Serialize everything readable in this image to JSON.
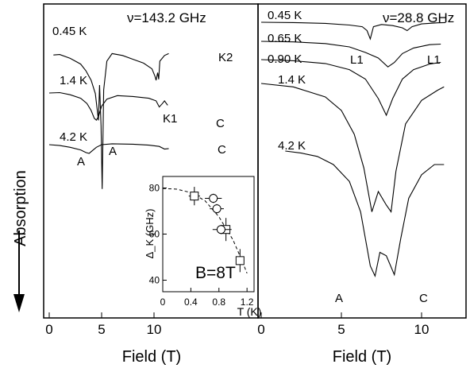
{
  "chart_data": {
    "ylabel": "Absorption",
    "left_panel": {
      "type": "line",
      "frequency_label": "ν=143.2 GHz",
      "xlabel": "Field (T)",
      "xlim": [
        0,
        11.5
      ],
      "ticks": [
        "0",
        "5",
        "10"
      ],
      "series": [
        {
          "name": "0.45 K",
          "points": [
            [
              0.4,
              -0.35
            ],
            [
              1.0,
              -0.3
            ],
            [
              2.0,
              -0.7
            ],
            [
              3.0,
              -1.3
            ],
            [
              3.5,
              -2.0
            ],
            [
              4.0,
              -3.0
            ],
            [
              4.4,
              -4.4
            ],
            [
              4.7,
              -7.2
            ],
            [
              4.8,
              -3.5
            ],
            [
              4.95,
              -7.8
            ],
            [
              5.05,
              -14.4
            ],
            [
              5.2,
              -4.0
            ],
            [
              5.5,
              -1.0
            ],
            [
              6.0,
              -0.2
            ],
            [
              7.0,
              -0.4
            ],
            [
              8.0,
              -0.8
            ],
            [
              9.0,
              -1.2
            ],
            [
              9.8,
              -1.8
            ],
            [
              10.1,
              -2.6
            ],
            [
              10.2,
              -3.0
            ],
            [
              10.35,
              -2.2
            ],
            [
              10.45,
              -2.9
            ],
            [
              10.55,
              -1.0
            ],
            [
              11.0,
              -0.4
            ],
            [
              11.4,
              -0.2
            ]
          ]
        },
        {
          "name": "1.4 K",
          "points": [
            [
              0.0,
              0.0
            ],
            [
              1.0,
              0.05
            ],
            [
              2.0,
              -0.2
            ],
            [
              3.0,
              -0.6
            ],
            [
              3.6,
              -1.2
            ],
            [
              4.0,
              -2.0
            ],
            [
              4.3,
              -2.9
            ],
            [
              4.5,
              -3.1
            ],
            [
              4.7,
              -2.7
            ],
            [
              5.0,
              -1.5
            ],
            [
              5.5,
              -0.7
            ],
            [
              6.5,
              -0.3
            ],
            [
              8.0,
              -0.4
            ],
            [
              9.5,
              -0.6
            ],
            [
              10.2,
              -0.9
            ],
            [
              10.5,
              -1.6
            ],
            [
              10.8,
              -1.2
            ],
            [
              11.0,
              -0.9
            ],
            [
              11.3,
              -1.4
            ]
          ]
        },
        {
          "name": "4.2 K",
          "points": [
            [
              0.0,
              0.0
            ],
            [
              1.0,
              -0.1
            ],
            [
              2.0,
              -0.3
            ],
            [
              3.0,
              -0.6
            ],
            [
              3.5,
              -0.9
            ],
            [
              3.8,
              -1.0
            ],
            [
              4.0,
              -0.8
            ],
            [
              4.5,
              -0.3
            ],
            [
              5.0,
              0.0
            ],
            [
              6.0,
              0.1
            ],
            [
              8.0,
              0.05
            ],
            [
              9.5,
              -0.05
            ],
            [
              10.5,
              -0.2
            ],
            [
              11.0,
              -0.5
            ],
            [
              11.4,
              -0.45
            ]
          ]
        }
      ],
      "annotations": [
        {
          "text": "K1",
          "x": 5.7,
          "y": 3.5
        },
        {
          "text": "K2",
          "x": 9.7,
          "y": 3.5
        },
        {
          "text": "C",
          "x": 10.4,
          "y": 2.4
        },
        {
          "text": "A",
          "x": 3.85,
          "y": 1.72
        },
        {
          "text": "A",
          "x": 3.1,
          "y": 1.0
        },
        {
          "text": "C",
          "x": 10.4,
          "y": 1.3
        }
      ]
    },
    "right_panel": {
      "type": "line",
      "frequency_label": "ν=28.8 GHz",
      "xlabel": "Field (T)",
      "xlim": [
        0,
        11.5
      ],
      "ticks": [
        "0",
        "5",
        "10"
      ],
      "series": [
        {
          "name": "0.45 K",
          "points": [
            [
              0.0,
              0.0
            ],
            [
              2.0,
              -0.05
            ],
            [
              4.0,
              -0.2
            ],
            [
              5.5,
              -0.5
            ],
            [
              6.3,
              -0.8
            ],
            [
              6.6,
              -1.5
            ],
            [
              6.8,
              -3.0
            ],
            [
              7.0,
              -0.8
            ],
            [
              7.5,
              -0.4
            ],
            [
              8.2,
              -0.6
            ],
            [
              8.8,
              -1.0
            ],
            [
              9.1,
              -1.5
            ],
            [
              9.4,
              -0.8
            ],
            [
              10.0,
              -0.3
            ],
            [
              11.0,
              -0.1
            ],
            [
              11.5,
              -0.05
            ]
          ]
        },
        {
          "name": "0.65 K",
          "points": [
            [
              0.0,
              0.0
            ],
            [
              2.0,
              -0.1
            ],
            [
              4.0,
              -0.4
            ],
            [
              5.5,
              -1.0
            ],
            [
              6.5,
              -2.0
            ],
            [
              7.3,
              -3.0
            ],
            [
              7.9,
              -4.6
            ],
            [
              8.3,
              -3.8
            ],
            [
              8.8,
              -2.2
            ],
            [
              9.5,
              -1.2
            ],
            [
              10.5,
              -0.6
            ],
            [
              11.2,
              -0.5
            ]
          ]
        },
        {
          "name": "0.90 K",
          "points": [
            [
              0.0,
              0.0
            ],
            [
              2.0,
              -0.2
            ],
            [
              4.0,
              -0.7
            ],
            [
              5.5,
              -1.8
            ],
            [
              6.5,
              -3.5
            ],
            [
              7.3,
              -7.0
            ],
            [
              7.8,
              -10.0
            ],
            [
              8.2,
              -7.0
            ],
            [
              8.8,
              -3.5
            ],
            [
              9.5,
              -1.8
            ],
            [
              10.5,
              -0.8
            ],
            [
              11.2,
              -0.5
            ]
          ]
        },
        {
          "name": "1.4 K",
          "points": [
            [
              0.0,
              0.0
            ],
            [
              2.0,
              -0.5
            ],
            [
              4.0,
              -2.0
            ],
            [
              5.0,
              -4.0
            ],
            [
              5.8,
              -7.5
            ],
            [
              6.4,
              -12.5
            ],
            [
              6.9,
              -19.0
            ],
            [
              7.3,
              -16.0
            ],
            [
              7.8,
              -18.0
            ],
            [
              8.1,
              -19.0
            ],
            [
              8.4,
              -13.0
            ],
            [
              9.0,
              -6.0
            ],
            [
              10.0,
              -2.5
            ],
            [
              11.0,
              -1.0
            ],
            [
              11.4,
              -0.5
            ]
          ]
        },
        {
          "name": "4.2 K",
          "points": [
            [
              1.5,
              0.0
            ],
            [
              2.5,
              -0.3
            ],
            [
              3.5,
              -0.8
            ],
            [
              4.5,
              -2.0
            ],
            [
              5.5,
              -4.5
            ],
            [
              6.2,
              -9.0
            ],
            [
              6.8,
              -17.0
            ],
            [
              7.1,
              -18.5
            ],
            [
              7.4,
              -15.0
            ],
            [
              7.8,
              -15.5
            ],
            [
              8.3,
              -18.3
            ],
            [
              8.7,
              -13.0
            ],
            [
              9.2,
              -7.0
            ],
            [
              10.0,
              -3.5
            ],
            [
              10.8,
              -2.0
            ],
            [
              11.4,
              -2.0
            ]
          ]
        }
      ],
      "annotations": [
        {
          "text": "L1",
          "x": 5.6,
          "y": 6.3
        },
        {
          "text": "L1",
          "x": 9.4,
          "y": 6.3
        },
        {
          "text": "A",
          "x": 5.2,
          "y": 0.55
        },
        {
          "text": "C",
          "x": 9.1,
          "y": 0.55
        }
      ]
    },
    "inset": {
      "type": "scatter",
      "annotation": "B=8T",
      "xlabel": "T (K)",
      "ylabel": "Δ_K (GHz)",
      "xlim": [
        0,
        1.3
      ],
      "ylim": [
        35,
        85
      ],
      "xticks": [
        0,
        0.4,
        0.8,
        1.2
      ],
      "yticks": [
        40,
        60,
        80
      ],
      "series": [
        {
          "marker": "square",
          "points": [
            {
              "x": 0.45,
              "y": 76.5,
              "xerr": 0.08,
              "yerr": 4
            },
            {
              "x": 0.9,
              "y": 62,
              "xerr": 0.08,
              "yerr": 5
            },
            {
              "x": 1.1,
              "y": 48.5,
              "xerr": 0.06,
              "yerr": 5
            }
          ]
        },
        {
          "marker": "circle",
          "points": [
            {
              "x": 0.72,
              "y": 75.5,
              "xerr": 0.12,
              "yerr": 2
            },
            {
              "x": 0.77,
              "y": 71,
              "xerr": 0.1,
              "yerr": 2
            },
            {
              "x": 0.83,
              "y": 62,
              "xerr": 0.12,
              "yerr": 2
            }
          ]
        }
      ],
      "fit_line": {
        "style": "dashed",
        "points": [
          [
            0.0,
            79.8
          ],
          [
            0.2,
            79.5
          ],
          [
            0.4,
            78
          ],
          [
            0.6,
            74.5
          ],
          [
            0.8,
            67.5
          ],
          [
            1.0,
            57.5
          ],
          [
            1.1,
            50.5
          ],
          [
            1.2,
            43
          ]
        ]
      }
    }
  }
}
